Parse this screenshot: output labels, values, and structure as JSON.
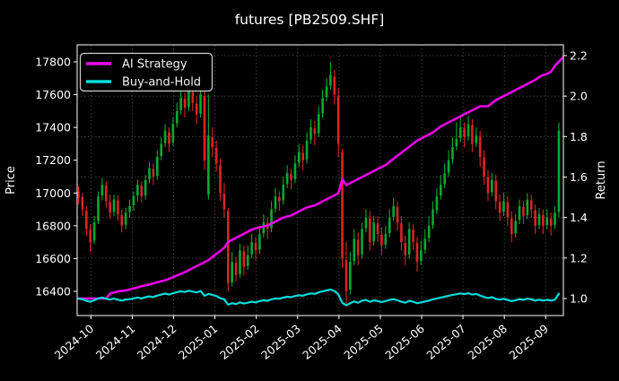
{
  "title": "futures [PB2509.SHF]",
  "legend": {
    "entries": [
      {
        "label": "AI Strategy",
        "color": "#ee00ee"
      },
      {
        "label": "Buy-and-Hold",
        "color": "#00dcdc"
      }
    ]
  },
  "colors": {
    "background": "#000000",
    "text": "#ffffff",
    "grid": "#888888",
    "candle_up": "#00ab30",
    "candle_down": "#dd2323",
    "ai_strategy": "#ee00ee",
    "buy_and_hold": "#00dcdc",
    "spine": "#ffffff"
  },
  "chart_data": {
    "type": "candlestick+line",
    "title": "futures [PB2509.SHF]",
    "ylabel_left": "Price",
    "ylabel_right": "Return",
    "x_tick_labels": [
      "2024-10",
      "2024-11",
      "2024-12",
      "2025-01",
      "2025-02",
      "2025-03",
      "2025-04",
      "2025-05",
      "2025-06",
      "2025-07",
      "2025-08",
      "2025-09"
    ],
    "month_tick_days": [
      7,
      28,
      49,
      70,
      91,
      112,
      133,
      154,
      175,
      196,
      217,
      238
    ],
    "days_total": 247,
    "candle_day_step": 2,
    "y_left_ticks": [
      16400,
      16600,
      16800,
      17000,
      17200,
      17400,
      17600,
      17800
    ],
    "y_right_ticks": [
      1.0,
      1.2,
      1.4,
      1.6,
      1.8,
      2.0,
      2.2
    ],
    "grid": true,
    "legend_position": "upper-left",
    "series": [
      {
        "name": "AI Strategy",
        "axis": "right",
        "color": "#ee00ee",
        "keyframes_day_value": [
          [
            0,
            1.0
          ],
          [
            14,
            1.0
          ],
          [
            16,
            1.025
          ],
          [
            20,
            1.035
          ],
          [
            24,
            1.04
          ],
          [
            28,
            1.05
          ],
          [
            32,
            1.06
          ],
          [
            36,
            1.07
          ],
          [
            40,
            1.08
          ],
          [
            44,
            1.09
          ],
          [
            49,
            1.11
          ],
          [
            54,
            1.13
          ],
          [
            58,
            1.15
          ],
          [
            62,
            1.17
          ],
          [
            66,
            1.19
          ],
          [
            70,
            1.22
          ],
          [
            74,
            1.25
          ],
          [
            76,
            1.28
          ],
          [
            80,
            1.3
          ],
          [
            84,
            1.32
          ],
          [
            88,
            1.34
          ],
          [
            91,
            1.35
          ],
          [
            96,
            1.36
          ],
          [
            100,
            1.38
          ],
          [
            104,
            1.4
          ],
          [
            108,
            1.41
          ],
          [
            112,
            1.43
          ],
          [
            116,
            1.45
          ],
          [
            120,
            1.46
          ],
          [
            124,
            1.48
          ],
          [
            128,
            1.5
          ],
          [
            132,
            1.52
          ],
          [
            134,
            1.59
          ],
          [
            136,
            1.56
          ],
          [
            140,
            1.58
          ],
          [
            144,
            1.6
          ],
          [
            148,
            1.62
          ],
          [
            152,
            1.64
          ],
          [
            156,
            1.66
          ],
          [
            160,
            1.69
          ],
          [
            164,
            1.72
          ],
          [
            168,
            1.75
          ],
          [
            172,
            1.78
          ],
          [
            176,
            1.8
          ],
          [
            180,
            1.82
          ],
          [
            184,
            1.85
          ],
          [
            188,
            1.87
          ],
          [
            192,
            1.89
          ],
          [
            196,
            1.91
          ],
          [
            200,
            1.93
          ],
          [
            204,
            1.95
          ],
          [
            208,
            1.95
          ],
          [
            212,
            1.98
          ],
          [
            216,
            2.0
          ],
          [
            220,
            2.02
          ],
          [
            224,
            2.04
          ],
          [
            228,
            2.06
          ],
          [
            232,
            2.08
          ],
          [
            235,
            2.1
          ],
          [
            238,
            2.11
          ],
          [
            240,
            2.12
          ],
          [
            242,
            2.15
          ],
          [
            246,
            2.19
          ]
        ]
      },
      {
        "name": "Buy-and-Hold",
        "axis": "right",
        "color": "#00dcdc",
        "derivation": "close / first_close of candles_ohlc"
      }
    ],
    "candles_ohlc": [
      [
        17010,
        17040,
        16930,
        16970
      ],
      [
        16975,
        17000,
        16860,
        16900
      ],
      [
        16890,
        16920,
        16740,
        16780
      ],
      [
        16775,
        16810,
        16640,
        16700
      ],
      [
        16710,
        16860,
        16690,
        16820
      ],
      [
        16830,
        17010,
        16810,
        16980
      ],
      [
        16985,
        17090,
        16955,
        17050
      ],
      [
        17045,
        17070,
        16910,
        16950
      ],
      [
        16945,
        16990,
        16840,
        16880
      ],
      [
        16885,
        16990,
        16860,
        16960
      ],
      [
        16955,
        16985,
        16830,
        16870
      ],
      [
        16865,
        16900,
        16760,
        16800
      ],
      [
        16805,
        16910,
        16780,
        16880
      ],
      [
        16885,
        16960,
        16850,
        16920
      ],
      [
        16925,
        17010,
        16890,
        16980
      ],
      [
        16985,
        17080,
        16950,
        17050
      ],
      [
        17045,
        17070,
        16940,
        16980
      ],
      [
        16985,
        17110,
        16960,
        17080
      ],
      [
        17085,
        17190,
        17060,
        17150
      ],
      [
        17145,
        17180,
        17050,
        17100
      ],
      [
        17105,
        17260,
        17080,
        17220
      ],
      [
        17225,
        17340,
        17200,
        17300
      ],
      [
        17305,
        17420,
        17280,
        17380
      ],
      [
        17370,
        17400,
        17250,
        17300
      ],
      [
        17310,
        17460,
        17290,
        17420
      ],
      [
        17425,
        17550,
        17400,
        17500
      ],
      [
        17505,
        17630,
        17480,
        17580
      ],
      [
        17575,
        17610,
        17460,
        17520
      ],
      [
        17525,
        17670,
        17500,
        17620
      ],
      [
        17615,
        17650,
        17500,
        17550
      ],
      [
        17545,
        17590,
        17420,
        17480
      ],
      [
        17485,
        17650,
        17460,
        17600
      ],
      [
        17590,
        17620,
        17140,
        17200
      ],
      [
        16990,
        17600,
        16960,
        17350
      ],
      [
        17340,
        17400,
        17220,
        17280
      ],
      [
        17275,
        17320,
        17130,
        17180
      ],
      [
        17170,
        17210,
        16950,
        17000
      ],
      [
        16995,
        17060,
        16850,
        16900
      ],
      [
        16890,
        16910,
        16400,
        16450
      ],
      [
        16455,
        16640,
        16430,
        16580
      ],
      [
        16575,
        16610,
        16460,
        16500
      ],
      [
        16505,
        16690,
        16480,
        16650
      ],
      [
        16645,
        16680,
        16500,
        16550
      ],
      [
        16555,
        16680,
        16530,
        16620
      ],
      [
        16625,
        16750,
        16600,
        16700
      ],
      [
        16695,
        16730,
        16590,
        16650
      ],
      [
        16655,
        16800,
        16630,
        16750
      ],
      [
        16755,
        16870,
        16730,
        16820
      ],
      [
        16815,
        16850,
        16720,
        16780
      ],
      [
        16785,
        16950,
        16760,
        16900
      ],
      [
        16905,
        17030,
        16880,
        16980
      ],
      [
        16975,
        17010,
        16890,
        16950
      ],
      [
        16955,
        17100,
        16930,
        17050
      ],
      [
        17055,
        17170,
        17030,
        17120
      ],
      [
        17115,
        17150,
        17020,
        17080
      ],
      [
        17085,
        17230,
        17060,
        17180
      ],
      [
        17185,
        17300,
        17160,
        17250
      ],
      [
        17245,
        17290,
        17140,
        17200
      ],
      [
        17205,
        17370,
        17180,
        17320
      ],
      [
        17325,
        17450,
        17300,
        17400
      ],
      [
        17395,
        17440,
        17290,
        17360
      ],
      [
        17365,
        17530,
        17340,
        17480
      ],
      [
        17485,
        17630,
        17460,
        17580
      ],
      [
        17585,
        17700,
        17560,
        17650
      ],
      [
        17655,
        17800,
        17630,
        17720
      ],
      [
        17710,
        17750,
        17540,
        17600
      ],
      [
        17590,
        17640,
        17220,
        17300
      ],
      [
        17250,
        17270,
        16540,
        16600
      ],
      [
        16590,
        16700,
        16310,
        16400
      ],
      [
        16410,
        16640,
        16380,
        16580
      ],
      [
        16585,
        16780,
        16560,
        16720
      ],
      [
        16715,
        16760,
        16560,
        16620
      ],
      [
        16625,
        16820,
        16600,
        16780
      ],
      [
        16785,
        16900,
        16760,
        16850
      ],
      [
        16845,
        16890,
        16650,
        16700
      ],
      [
        16705,
        16860,
        16680,
        16820
      ],
      [
        16815,
        16860,
        16700,
        16750
      ],
      [
        16745,
        16790,
        16620,
        16680
      ],
      [
        16685,
        16800,
        16660,
        16750
      ],
      [
        16755,
        16900,
        16730,
        16850
      ],
      [
        16855,
        16970,
        16830,
        16920
      ],
      [
        16915,
        16950,
        16770,
        16820
      ],
      [
        16815,
        16860,
        16650,
        16700
      ],
      [
        16695,
        16740,
        16560,
        16620
      ],
      [
        16625,
        16820,
        16600,
        16780
      ],
      [
        16775,
        16810,
        16650,
        16700
      ],
      [
        16695,
        16730,
        16520,
        16580
      ],
      [
        16585,
        16710,
        16560,
        16650
      ],
      [
        16655,
        16780,
        16630,
        16720
      ],
      [
        16725,
        16860,
        16700,
        16800
      ],
      [
        16805,
        16950,
        16780,
        16900
      ],
      [
        16895,
        17030,
        16870,
        16980
      ],
      [
        16985,
        17110,
        16960,
        17050
      ],
      [
        17055,
        17180,
        17030,
        17120
      ],
      [
        17125,
        17260,
        17100,
        17200
      ],
      [
        17205,
        17340,
        17180,
        17280
      ],
      [
        17285,
        17430,
        17260,
        17330
      ],
      [
        17335,
        17460,
        17310,
        17400
      ],
      [
        17395,
        17430,
        17280,
        17340
      ],
      [
        17345,
        17470,
        17320,
        17420
      ],
      [
        17415,
        17450,
        17250,
        17300
      ],
      [
        17305,
        17400,
        17280,
        17350
      ],
      [
        17345,
        17380,
        17160,
        17220
      ],
      [
        17215,
        17260,
        17050,
        17100
      ],
      [
        17095,
        17140,
        16950,
        17000
      ],
      [
        17005,
        17120,
        16980,
        17080
      ],
      [
        17075,
        17110,
        16900,
        16950
      ],
      [
        16945,
        16990,
        16830,
        16880
      ],
      [
        16885,
        17000,
        16860,
        16950
      ],
      [
        16945,
        16980,
        16800,
        16850
      ],
      [
        16845,
        16890,
        16700,
        16750
      ],
      [
        16755,
        16870,
        16730,
        16830
      ],
      [
        16835,
        16960,
        16810,
        16920
      ],
      [
        16915,
        16950,
        16810,
        16860
      ],
      [
        16865,
        17000,
        16840,
        16960
      ],
      [
        16955,
        16990,
        16850,
        16900
      ],
      [
        16895,
        16930,
        16750,
        16800
      ],
      [
        16805,
        16910,
        16780,
        16870
      ],
      [
        16865,
        16900,
        16750,
        16800
      ],
      [
        16805,
        16900,
        16780,
        16850
      ],
      [
        16845,
        16880,
        16740,
        16800
      ],
      [
        16805,
        16920,
        16780,
        16880
      ],
      [
        16885,
        17430,
        16850,
        17380
      ]
    ]
  }
}
